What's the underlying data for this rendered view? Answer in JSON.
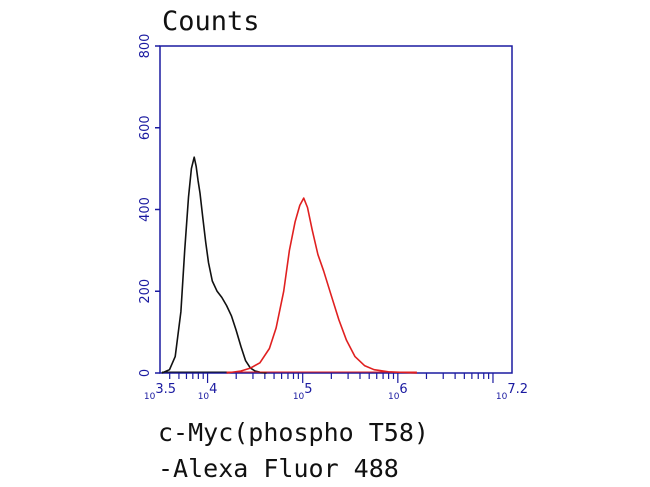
{
  "chart_data": {
    "type": "line",
    "title": "",
    "ylabel": "Counts",
    "xlabel_line1": "c-Myc(phospho T58)",
    "xlabel_line2": "-Alexa Fluor 488",
    "xscale": "log10",
    "xlim": [
      3.5,
      7.2
    ],
    "ylim": [
      0,
      800
    ],
    "yticks": [
      {
        "value": 0,
        "label": "0"
      },
      {
        "value": 200,
        "label": "200"
      },
      {
        "value": 400,
        "label": "400"
      },
      {
        "value": 600,
        "label": "600"
      },
      {
        "value": 800,
        "label": "800"
      }
    ],
    "xticks": [
      {
        "value": 3.5,
        "base": "10",
        "exp": "3.5"
      },
      {
        "value": 4,
        "base": "10",
        "exp": "4"
      },
      {
        "value": 5,
        "base": "10",
        "exp": "5"
      },
      {
        "value": 6,
        "base": "10",
        "exp": "6"
      },
      {
        "value": 7.2,
        "base": "10",
        "exp": "7.2"
      }
    ],
    "grid": false,
    "colors": {
      "axis": "#1a1aa0",
      "tick_text": "#1a1aa0"
    },
    "series": [
      {
        "color": "#111111",
        "x": [
          3.52,
          3.6,
          3.66,
          3.72,
          3.76,
          3.8,
          3.83,
          3.86,
          3.88,
          3.9,
          3.92,
          3.95,
          3.98,
          4.01,
          4.05,
          4.1,
          4.15,
          4.2,
          4.25,
          4.3,
          4.35,
          4.4,
          4.45,
          4.5,
          4.55,
          4.62
        ],
        "y": [
          0,
          8,
          40,
          150,
          300,
          430,
          500,
          528,
          505,
          470,
          440,
          380,
          320,
          270,
          225,
          200,
          185,
          165,
          140,
          105,
          65,
          30,
          12,
          5,
          2,
          0
        ]
      },
      {
        "color": "#e02020",
        "x": [
          4.2,
          4.35,
          4.45,
          4.55,
          4.65,
          4.72,
          4.8,
          4.86,
          4.92,
          4.97,
          5.01,
          5.05,
          5.1,
          5.16,
          5.22,
          5.3,
          5.38,
          5.46,
          5.55,
          5.65,
          5.75,
          5.9,
          6.2
        ],
        "y": [
          0,
          5,
          12,
          25,
          60,
          110,
          200,
          300,
          370,
          410,
          428,
          405,
          350,
          290,
          250,
          190,
          130,
          80,
          40,
          18,
          8,
          3,
          0
        ]
      }
    ]
  }
}
